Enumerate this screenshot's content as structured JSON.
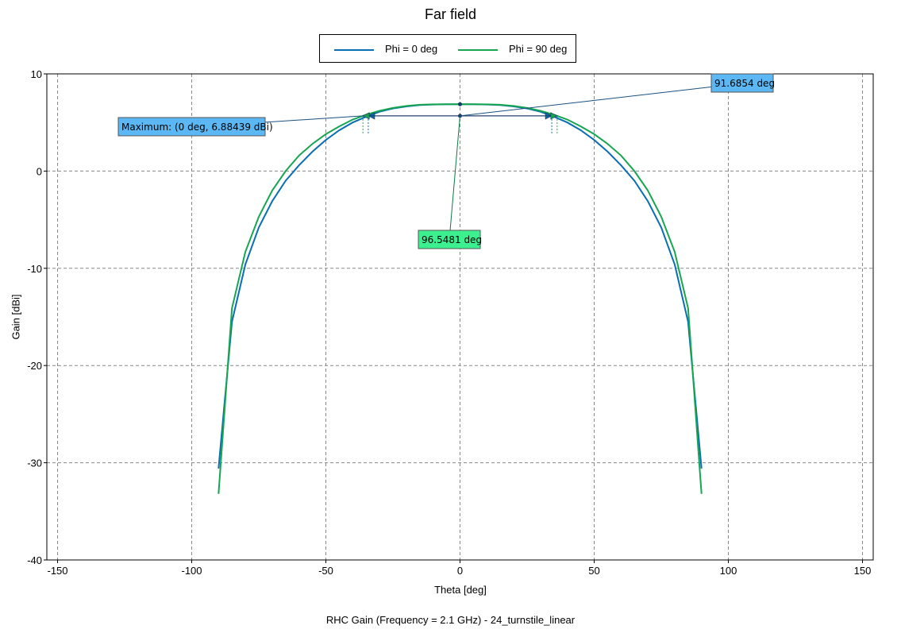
{
  "chart_data": {
    "type": "line",
    "title": "Far field",
    "xlabel": "Theta [deg]",
    "ylabel": "Gain [dBi]",
    "footer": "RHC Gain (Frequency = 2.1 GHz) - 24_turnstile_linear",
    "xlim": [
      -154,
      154
    ],
    "ylim": [
      -40,
      10
    ],
    "x_ticks": [
      -150,
      -100,
      -50,
      0,
      50,
      100,
      150
    ],
    "y_ticks": [
      10,
      0,
      -10,
      -20,
      -30,
      -40
    ],
    "grid": true,
    "legend_position": "top-center",
    "series": [
      {
        "name": "Phi = 0 deg",
        "color": "#0a6eb4",
        "x": [
          -90,
          -85,
          -80,
          -75,
          -70,
          -65,
          -60,
          -55,
          -50,
          -45,
          -40,
          -35,
          -30,
          -25,
          -20,
          -15,
          -10,
          -5,
          0,
          5,
          10,
          15,
          20,
          25,
          30,
          35,
          40,
          45,
          50,
          55,
          60,
          65,
          70,
          75,
          80,
          85,
          90
        ],
        "values": [
          -30.6,
          -15.5,
          -9.6,
          -5.8,
          -3.1,
          -1.0,
          0.6,
          2.0,
          3.2,
          4.2,
          5.0,
          5.6,
          6.1,
          6.45,
          6.65,
          6.8,
          6.85,
          6.88,
          6.88,
          6.88,
          6.85,
          6.8,
          6.65,
          6.45,
          6.1,
          5.6,
          5.0,
          4.2,
          3.2,
          2.0,
          0.6,
          -1.0,
          -3.1,
          -5.8,
          -9.6,
          -15.5,
          -30.6
        ]
      },
      {
        "name": "Phi = 90 deg",
        "color": "#17a650",
        "x": [
          -90,
          -85,
          -80,
          -75,
          -70,
          -65,
          -60,
          -55,
          -50,
          -45,
          -40,
          -35,
          -30,
          -25,
          -20,
          -15,
          -10,
          -5,
          0,
          5,
          10,
          15,
          20,
          25,
          30,
          35,
          40,
          45,
          50,
          55,
          60,
          65,
          70,
          75,
          80,
          85,
          90
        ],
        "values": [
          -33.2,
          -14.1,
          -8.3,
          -4.7,
          -2.0,
          0.0,
          1.6,
          2.8,
          3.8,
          4.6,
          5.3,
          5.8,
          6.2,
          6.5,
          6.7,
          6.82,
          6.86,
          6.88,
          6.88,
          6.88,
          6.86,
          6.82,
          6.7,
          6.5,
          6.2,
          5.8,
          5.3,
          4.6,
          3.8,
          2.8,
          1.6,
          0.0,
          -2.0,
          -4.7,
          -8.3,
          -14.1,
          -33.2
        ]
      }
    ],
    "annotations": {
      "maximum": {
        "label": "Maximum: (0 deg, 6.88439 dBi)",
        "color": "#5bb8f5"
      },
      "beamwidth_phi0": {
        "label": "91.6854 deg",
        "color": "#5bb8f5"
      },
      "beamwidth_phi90": {
        "label": "96.5481 deg",
        "color": "#3cf08f"
      }
    }
  }
}
